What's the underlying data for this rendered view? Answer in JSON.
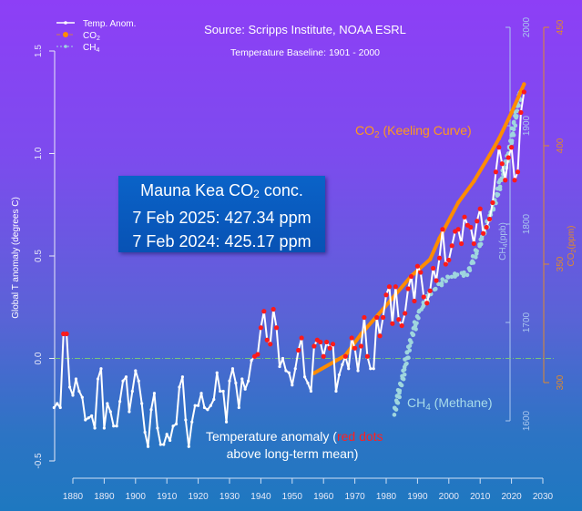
{
  "chart_data": {
    "type": "line",
    "title": "Source: Scripps Institute, NOAA ESRL",
    "subtitle": "Temperature Baseline: 1901 - 2000",
    "xlabel": "",
    "ylabel": "Global T anomaly (degrees C)",
    "ylabel_ch4": {
      "pre": "CH",
      "sub": "4",
      "post": "(ppb)"
    },
    "ylabel_co2": {
      "pre": "CO",
      "sub": "2",
      "post": "(ppm)"
    },
    "xlim": [
      1880,
      2030
    ],
    "ylim": [
      -0.5,
      1.5
    ],
    "ylim_ch4": [
      1600,
      2000
    ],
    "ylim_co2": [
      300,
      450
    ],
    "x_ticks": [
      "1880",
      "1890",
      "1900",
      "1910",
      "1920",
      "1930",
      "1940",
      "1950",
      "1960",
      "1970",
      "1980",
      "1990",
      "2000",
      "2010",
      "2020",
      "2030"
    ],
    "y_ticks": [
      "-0.5",
      "0.0",
      "0.5",
      "1.0",
      "1.5"
    ],
    "y_ticks_ch4": [
      "1600",
      "1700",
      "1800",
      "1900",
      "2000"
    ],
    "y_ticks_co2": [
      "300",
      "350",
      "400",
      "450"
    ],
    "legend": {
      "placement": "top-left",
      "items": [
        {
          "label": "Temp. Anom.",
          "pre": "Temp. Anom.",
          "sub": ""
        },
        {
          "label": "CO2",
          "pre": "CO",
          "sub": "2"
        },
        {
          "label": "CH4",
          "pre": "CH",
          "sub": "4"
        }
      ]
    },
    "colors": {
      "temp": "#ffffff",
      "above_mean": "#ff1a1a",
      "co2": "#ff8c00",
      "ch4": "#9fd6de",
      "baseline": "#78c47a",
      "co2_axis": "#e0892c",
      "ch4_axis": "#a9c6ee"
    },
    "series": [
      {
        "name": "Temp. Anom.",
        "start_year": 1874,
        "values": [
          -0.24,
          -0.22,
          -0.24,
          0.12,
          0.12,
          -0.14,
          -0.18,
          -0.1,
          -0.16,
          -0.19,
          -0.3,
          -0.29,
          -0.28,
          -0.34,
          -0.1,
          -0.05,
          -0.34,
          -0.22,
          -0.26,
          -0.33,
          -0.33,
          -0.21,
          -0.11,
          -0.09,
          -0.26,
          -0.16,
          -0.06,
          -0.11,
          -0.22,
          -0.36,
          -0.43,
          -0.25,
          -0.17,
          -0.34,
          -0.42,
          -0.42,
          -0.37,
          -0.4,
          -0.33,
          -0.32,
          -0.14,
          -0.09,
          -0.3,
          -0.43,
          -0.31,
          -0.23,
          -0.23,
          -0.17,
          -0.24,
          -0.25,
          -0.23,
          -0.2,
          -0.07,
          -0.16,
          -0.16,
          -0.31,
          -0.11,
          -0.05,
          -0.12,
          -0.24,
          -0.1,
          -0.15,
          -0.11,
          -0.01,
          0.01,
          0.02,
          0.15,
          0.23,
          0.09,
          0.07,
          0.24,
          0.15,
          -0.04,
          0.0,
          -0.06,
          -0.07,
          -0.13,
          -0.05,
          0.04,
          0.1,
          -0.09,
          -0.12,
          -0.16,
          0.06,
          0.09,
          0.08,
          0.01,
          0.08,
          0.05,
          0.07,
          -0.16,
          -0.08,
          -0.03,
          0.01,
          -0.05,
          0.1,
          0.05,
          -0.06,
          0.06,
          0.2,
          0.01,
          -0.05,
          -0.05,
          0.2,
          0.11,
          0.2,
          0.31,
          0.35,
          0.17,
          0.35,
          0.19,
          0.16,
          0.22,
          0.34,
          0.4,
          0.28,
          0.45,
          0.42,
          0.3,
          0.27,
          0.33,
          0.44,
          0.38,
          0.49,
          0.63,
          0.46,
          0.48,
          0.55,
          0.62,
          0.63,
          0.56,
          0.69,
          0.65,
          0.64,
          0.56,
          0.67,
          0.73,
          0.61,
          0.64,
          0.68,
          0.76,
          0.91,
          1.03,
          0.95,
          0.87,
          0.98,
          1.03,
          0.87,
          0.91,
          1.2,
          1.3
        ]
      },
      {
        "name": "CO2",
        "axis": "co2",
        "points": [
          [
            1957,
            304
          ],
          [
            1967,
            311.5
          ],
          [
            1972,
            320.5
          ],
          [
            1979,
            331
          ],
          [
            1988,
            345
          ],
          [
            1994,
            352
          ],
          [
            1997,
            361
          ],
          [
            2003,
            376
          ],
          [
            2008,
            385
          ],
          [
            2013,
            396
          ],
          [
            2016,
            403
          ],
          [
            2020,
            414
          ],
          [
            2023,
            423
          ],
          [
            2024,
            426
          ]
        ]
      },
      {
        "name": "CH4",
        "axis": "ch4",
        "points": [
          [
            1982.6,
            1608
          ],
          [
            1985.5,
            1648
          ],
          [
            1987.6,
            1679
          ],
          [
            1990.5,
            1710
          ],
          [
            1994,
            1729
          ],
          [
            2000,
            1747
          ],
          [
            2006,
            1750
          ],
          [
            2010,
            1781
          ],
          [
            2014.6,
            1821
          ],
          [
            2016.6,
            1843
          ],
          [
            2019.5,
            1877
          ],
          [
            2021.6,
            1914
          ],
          [
            2023,
            1935
          ]
        ]
      }
    ],
    "annotations": {
      "co2_curve": {
        "pre": "CO",
        "sub": "2",
        "post": " (Keeling Curve)"
      },
      "ch4_curve": {
        "pre": "CH",
        "sub": "4",
        "post": " (Methane)"
      },
      "temp_line1": "Temperature anomaly (",
      "temp_red": "red dots",
      "temp_line2": "above long-term mean)"
    }
  },
  "info_box": {
    "title_pre": "Mauna Kea CO",
    "title_sub": "2",
    "title_post": " conc.",
    "line1": "7 Feb 2025: 427.34 ppm",
    "line2": "7 Feb 2024: 425.17 ppm"
  }
}
